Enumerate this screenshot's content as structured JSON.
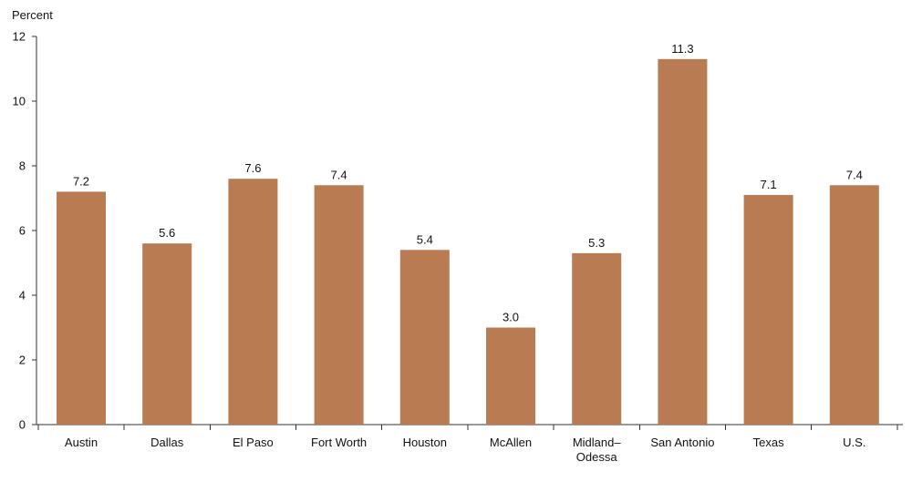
{
  "chart_data": {
    "type": "bar",
    "title": "",
    "ylabel": "Percent",
    "xlabel": "",
    "ylim": [
      0,
      12
    ],
    "yticks": [
      "0",
      "2",
      "4",
      "6",
      "8",
      "10",
      "12"
    ],
    "grid": false,
    "legend": "none",
    "categories": [
      [
        "Austin"
      ],
      [
        "Dallas"
      ],
      [
        "El Paso"
      ],
      [
        "Fort Worth"
      ],
      [
        "Houston"
      ],
      [
        "McAllen"
      ],
      [
        "Midland–",
        "Odessa"
      ],
      [
        "San Antonio"
      ],
      [
        "Texas"
      ],
      [
        "U.S."
      ]
    ],
    "values": [
      7.2,
      5.6,
      7.6,
      7.4,
      5.4,
      3.0,
      5.3,
      11.3,
      7.1,
      7.4
    ],
    "data_labels": [
      "7.2",
      "5.6",
      "7.6",
      "7.4",
      "5.4",
      "3.0",
      "5.3",
      "11.3",
      "7.1",
      "7.4"
    ],
    "bar_color": "#b87b52"
  }
}
